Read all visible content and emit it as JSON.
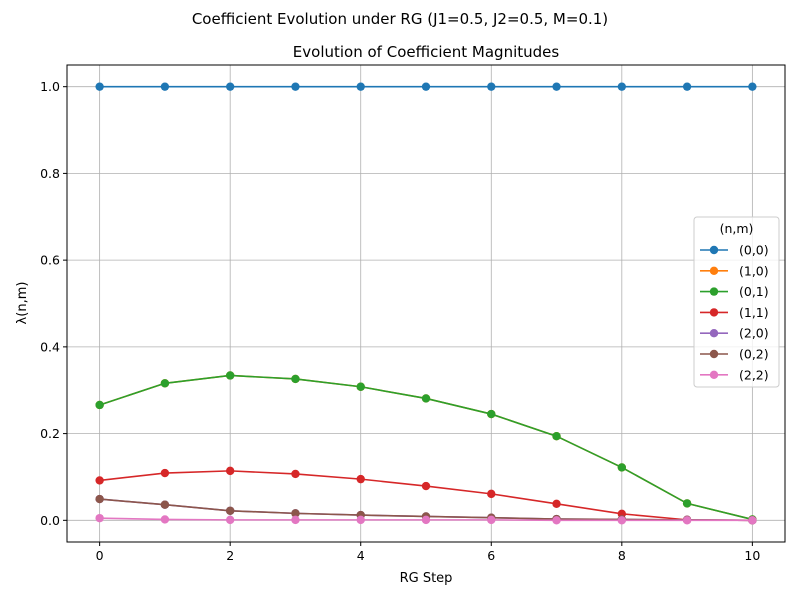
{
  "figure": {
    "suptitle": "Coefficient Evolution under RG (J1=0.5, J2=0.5, M=0.1)"
  },
  "chart_data": {
    "type": "line",
    "title": "Evolution of Coefficient Magnitudes",
    "xlabel": "RG Step",
    "ylabel": "λ(n,m)",
    "xlim": [
      -0.5,
      10.5
    ],
    "ylim": [
      -0.05,
      1.05
    ],
    "xticks": [
      0,
      2,
      4,
      6,
      8,
      10
    ],
    "yticks": [
      0.0,
      0.2,
      0.4,
      0.6,
      0.8,
      1.0
    ],
    "xtick_labels": [
      "0",
      "2",
      "4",
      "6",
      "8",
      "10"
    ],
    "ytick_labels": [
      "0.0",
      "0.2",
      "0.4",
      "0.6",
      "0.8",
      "1.0"
    ],
    "grid": true,
    "legend": {
      "title": "(n,m)",
      "placement": "center-right"
    },
    "x": [
      0,
      1,
      2,
      3,
      4,
      5,
      6,
      7,
      8,
      9,
      10
    ],
    "series": [
      {
        "name": "(0,0)",
        "color": "#1f77b4",
        "values": [
          1.0,
          1.0,
          1.0,
          1.0,
          1.0,
          1.0,
          1.0,
          1.0,
          1.0,
          1.0,
          1.0
        ]
      },
      {
        "name": "(1,0)",
        "color": "#ff7f0e",
        "values": [
          0.266,
          0.316,
          0.334,
          0.326,
          0.308,
          0.281,
          0.245,
          0.194,
          0.122,
          0.039,
          0.002
        ]
      },
      {
        "name": "(0,1)",
        "color": "#2ca02c",
        "values": [
          0.266,
          0.316,
          0.334,
          0.326,
          0.308,
          0.281,
          0.245,
          0.194,
          0.122,
          0.039,
          0.002
        ]
      },
      {
        "name": "(1,1)",
        "color": "#d62728",
        "values": [
          0.092,
          0.109,
          0.114,
          0.107,
          0.095,
          0.079,
          0.061,
          0.038,
          0.015,
          0.001,
          0.0
        ]
      },
      {
        "name": "(2,0)",
        "color": "#9467bd",
        "values": [
          0.049,
          0.036,
          0.022,
          0.016,
          0.012,
          0.009,
          0.006,
          0.003,
          0.002,
          0.001,
          0.0
        ]
      },
      {
        "name": "(0,2)",
        "color": "#8c564b",
        "values": [
          0.049,
          0.036,
          0.022,
          0.016,
          0.012,
          0.009,
          0.006,
          0.003,
          0.002,
          0.001,
          0.0
        ]
      },
      {
        "name": "(2,2)",
        "color": "#e377c2",
        "values": [
          0.005,
          0.002,
          0.001,
          0.001,
          0.001,
          0.001,
          0.001,
          0.0,
          0.0,
          0.0,
          0.0
        ]
      }
    ]
  }
}
